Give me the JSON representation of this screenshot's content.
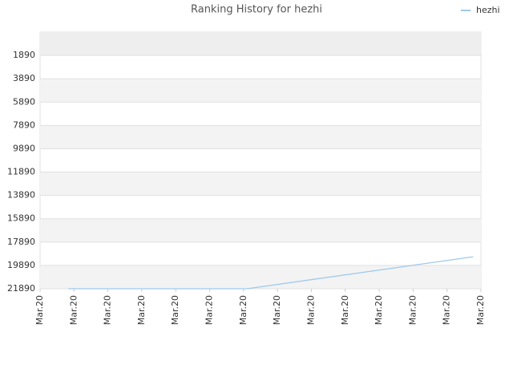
{
  "chart_data": {
    "type": "line",
    "title": "Ranking History for hezhi",
    "x": [
      0.83,
      6.1,
      12.77
    ],
    "series": [
      {
        "name": "hezhi",
        "color": "#9ec9ee",
        "values": [
          21890,
          21890,
          19150
        ]
      }
    ],
    "xlim": [
      0,
      13
    ],
    "xticks": [
      {
        "value": 0,
        "label": "Mar.20"
      },
      {
        "value": 1,
        "label": "Mar.20"
      },
      {
        "value": 2,
        "label": "Mar.20"
      },
      {
        "value": 3,
        "label": "Mar.20"
      },
      {
        "value": 4,
        "label": "Mar.20"
      },
      {
        "value": 5,
        "label": "Mar.20"
      },
      {
        "value": 6,
        "label": "Mar.20"
      },
      {
        "value": 7,
        "label": "Mar.20"
      },
      {
        "value": 8,
        "label": "Mar.20"
      },
      {
        "value": 9,
        "label": "Mar.20"
      },
      {
        "value": 10,
        "label": "Mar.20"
      },
      {
        "value": 11,
        "label": "Mar.20"
      },
      {
        "value": 12,
        "label": "Mar.20"
      },
      {
        "value": 13,
        "label": "Mar.20"
      }
    ],
    "ylim": [
      21890,
      -110
    ],
    "yticks": [
      1890,
      3890,
      5890,
      7890,
      9890,
      11890,
      13890,
      15890,
      17890,
      19890,
      21890
    ],
    "grid": true,
    "legend": "top-right"
  }
}
